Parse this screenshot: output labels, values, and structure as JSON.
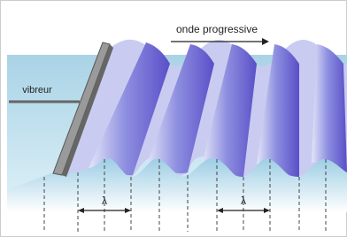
{
  "labels": {
    "wave": "onde progressive",
    "vibrator": "vibreur",
    "wavelength_1": "λ",
    "wavelength_2": "λ"
  }
}
